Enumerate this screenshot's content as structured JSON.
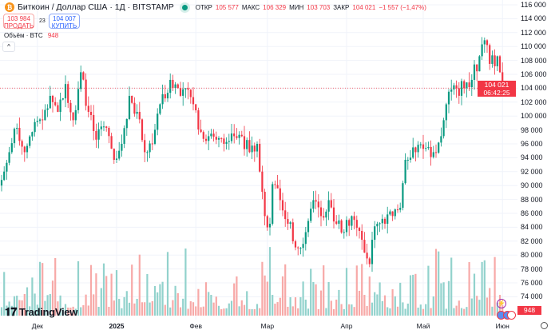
{
  "header": {
    "title": "Биткоин / Доллар США · 1Д · BITSTAMP",
    "open_label": "ОТКР",
    "open": "105 577",
    "high_label": "МАКС",
    "high": "106 329",
    "low_label": "МИН",
    "low": "103 703",
    "close_label": "ЗАКР",
    "close": "104 021",
    "change": "−1 557 (−1,47%)"
  },
  "trade": {
    "sell_price": "103 984",
    "sell_label": "ПРОДАТЬ",
    "spread": "23",
    "buy_price": "104 007",
    "buy_label": "КУПИТЬ"
  },
  "volume": {
    "label": "Объём · BTC",
    "value": "948"
  },
  "collapse_icon": "^",
  "price_axis": [
    "116 000",
    "114 000",
    "112 000",
    "110 000",
    "108 000",
    "106 000",
    "104 000",
    "102 000",
    "100 000",
    "98 000",
    "96 000",
    "94 000",
    "92 000",
    "90 000",
    "88 000",
    "86 000",
    "84 000",
    "82 000",
    "80 000",
    "78 000",
    "76 000",
    "74 000"
  ],
  "current": {
    "price": "104 021",
    "countdown": "06:42:25",
    "volume_tag": "948"
  },
  "time_axis": [
    {
      "label": "Дек",
      "day": 14
    },
    {
      "label": "2025",
      "day": 45,
      "bold": true
    },
    {
      "label": "Фев",
      "day": 76
    },
    {
      "label": "Мар",
      "day": 104
    },
    {
      "label": "Апр",
      "day": 135
    },
    {
      "label": "Май",
      "day": 165
    },
    {
      "label": "Июн",
      "day": 196
    }
  ],
  "logo": "TradingView",
  "colors": {
    "up": "#089981",
    "down": "#f23645",
    "up_vol": "#92d2cc",
    "down_vol": "#f7a9a7"
  },
  "chart_data": {
    "type": "candlestick",
    "ylim": [
      73000,
      117000
    ],
    "days": 197,
    "close_points": [
      [
        0,
        90800
      ],
      [
        3,
        94800
      ],
      [
        6,
        98300
      ],
      [
        9,
        94800
      ],
      [
        12,
        97700
      ],
      [
        16,
        99400
      ],
      [
        19,
        102900
      ],
      [
        22,
        100600
      ],
      [
        25,
        104600
      ],
      [
        28,
        99400
      ],
      [
        31,
        106300
      ],
      [
        34,
        100600
      ],
      [
        37,
        96600
      ],
      [
        41,
        98300
      ],
      [
        44,
        93700
      ],
      [
        47,
        96000
      ],
      [
        50,
        102900
      ],
      [
        53,
        100600
      ],
      [
        56,
        94800
      ],
      [
        59,
        96000
      ],
      [
        62,
        101700
      ],
      [
        66,
        105200
      ],
      [
        69,
        104000
      ],
      [
        72,
        104000
      ],
      [
        75,
        101700
      ],
      [
        78,
        97700
      ],
      [
        81,
        97100
      ],
      [
        84,
        96600
      ],
      [
        87,
        96000
      ],
      [
        91,
        97100
      ],
      [
        94,
        97100
      ],
      [
        97,
        94800
      ],
      [
        100,
        96000
      ],
      [
        102,
        89100
      ],
      [
        103,
        85600
      ],
      [
        105,
        84500
      ],
      [
        106,
        90200
      ],
      [
        109,
        87900
      ],
      [
        112,
        84500
      ],
      [
        116,
        81000
      ],
      [
        119,
        83300
      ],
      [
        122,
        87900
      ],
      [
        125,
        85600
      ],
      [
        128,
        87900
      ],
      [
        131,
        84500
      ],
      [
        134,
        83300
      ],
      [
        137,
        85600
      ],
      [
        141,
        82200
      ],
      [
        144,
        78700
      ],
      [
        145,
        82200
      ],
      [
        147,
        84500
      ],
      [
        150,
        84500
      ],
      [
        153,
        85600
      ],
      [
        156,
        86800
      ],
      [
        158,
        93700
      ],
      [
        159,
        93700
      ],
      [
        162,
        94800
      ],
      [
        166,
        95400
      ],
      [
        169,
        94800
      ],
      [
        172,
        97100
      ],
      [
        173,
        99400
      ],
      [
        175,
        103500
      ],
      [
        178,
        104000
      ],
      [
        181,
        104000
      ],
      [
        184,
        105200
      ],
      [
        187,
        108600
      ],
      [
        189,
        110900
      ],
      [
        191,
        107500
      ],
      [
        194,
        108600
      ],
      [
        195,
        106300
      ],
      [
        196,
        104000
      ]
    ]
  }
}
